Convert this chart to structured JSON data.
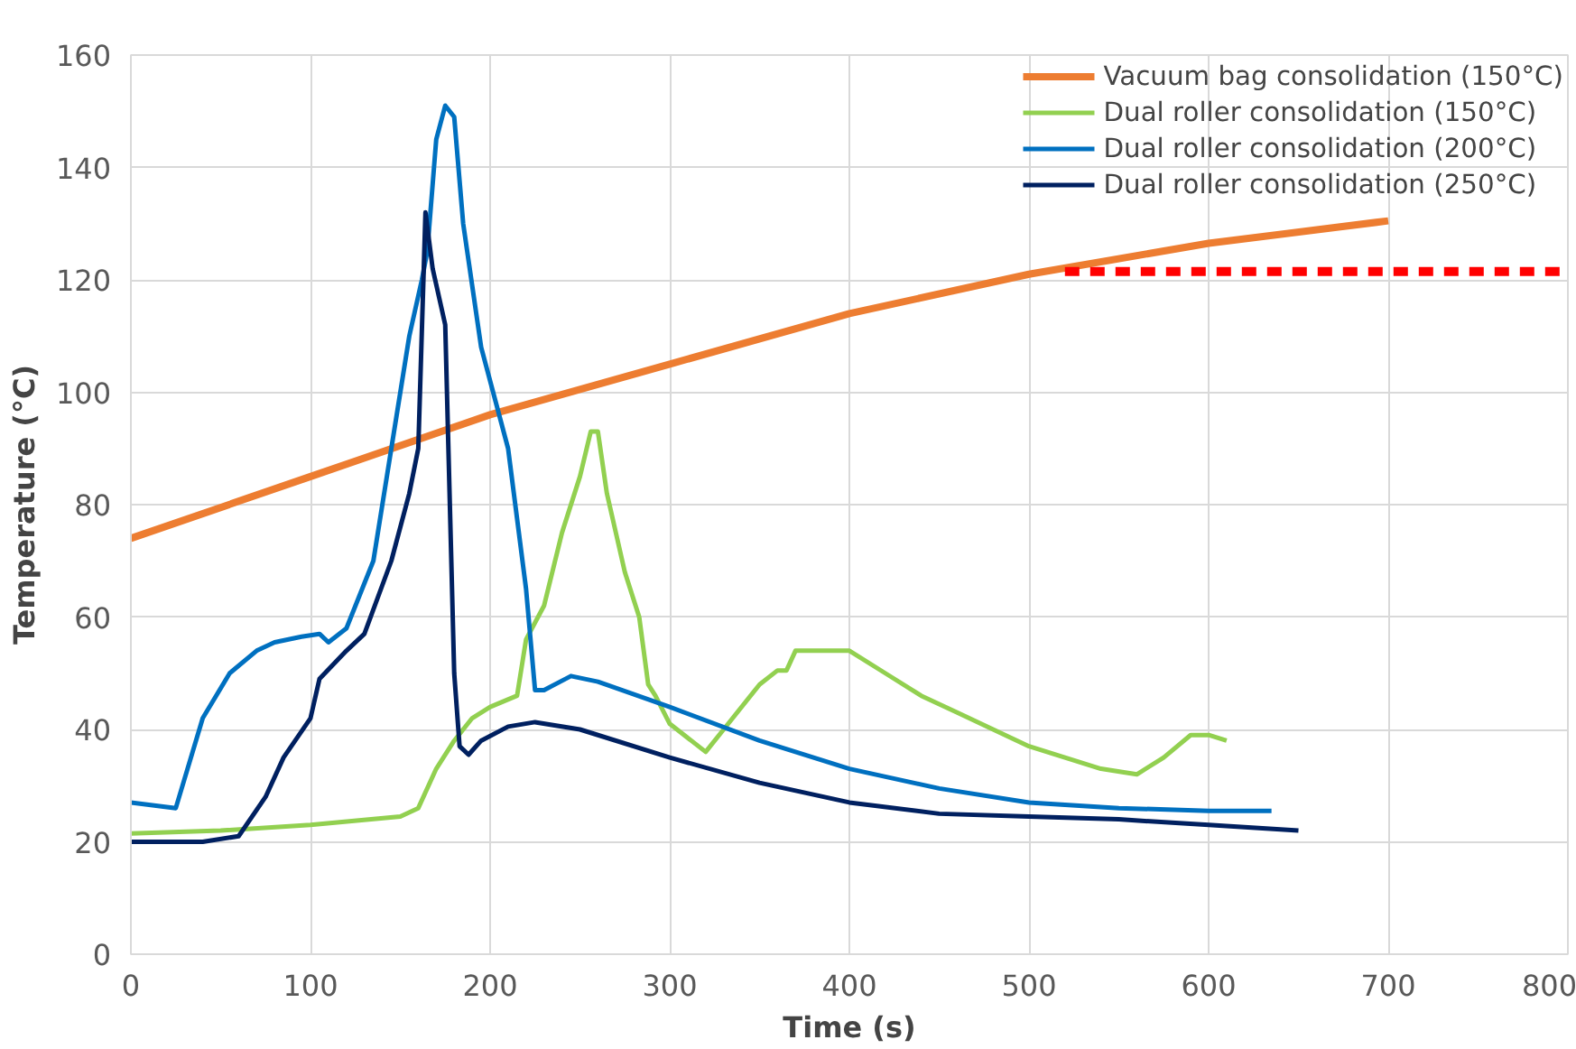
{
  "chart_data": {
    "type": "line",
    "xlabel": "Time (s)",
    "ylabel": "Temperature (°C)",
    "xlim": [
      0,
      800
    ],
    "ylim": [
      0,
      160
    ],
    "xticks": [
      0,
      100,
      200,
      300,
      400,
      500,
      600,
      700,
      800
    ],
    "yticks": [
      0,
      20,
      40,
      60,
      80,
      100,
      120,
      140,
      160
    ],
    "grid": true,
    "legend": "top right",
    "line_style": "solid",
    "series": [
      {
        "name": "Vacuum bag consolidation (150°C)",
        "color": "#ed7d31",
        "x": [
          0,
          100,
          200,
          300,
          400,
          500,
          600,
          700
        ],
        "values": [
          74,
          85,
          96,
          105,
          114,
          121,
          126.5,
          130.5
        ]
      },
      {
        "name": "Dual roller consolidation (150°C)",
        "color": "#92d050",
        "x": [
          0,
          50,
          100,
          150,
          160,
          170,
          180,
          190,
          200,
          215,
          220,
          230,
          240,
          250,
          256,
          260,
          265,
          275,
          283,
          288,
          292,
          300,
          320,
          330,
          350,
          360,
          365,
          370,
          400,
          420,
          440,
          460,
          480,
          500,
          520,
          540,
          560,
          575,
          590,
          600,
          610
        ],
        "values": [
          21.5,
          22,
          23,
          24.5,
          26,
          33,
          38,
          42,
          44,
          46,
          56,
          62,
          75,
          85,
          93,
          93,
          82,
          68,
          60,
          48,
          46,
          41,
          36,
          40,
          48,
          50.5,
          50.5,
          54,
          54,
          50,
          46,
          43,
          40,
          37,
          35,
          33,
          32,
          35,
          39,
          39,
          38
        ]
      },
      {
        "name": "Dual roller consolidation (200°C)",
        "color": "#0070c0",
        "x": [
          0,
          25,
          40,
          55,
          70,
          80,
          95,
          105,
          110,
          120,
          135,
          145,
          155,
          162,
          165,
          170,
          175,
          180,
          185,
          195,
          210,
          220,
          225,
          230,
          245,
          260,
          300,
          350,
          400,
          450,
          500,
          550,
          600,
          635
        ],
        "values": [
          27,
          26,
          42,
          50,
          54,
          55.5,
          56.5,
          57,
          55.5,
          58,
          70,
          90,
          110,
          120,
          125,
          145,
          151,
          149,
          130,
          108,
          90,
          65,
          47,
          47,
          49.5,
          48.5,
          44,
          38,
          33,
          29.5,
          27,
          26,
          25.5,
          25.5
        ]
      },
      {
        "name": "Dual roller consolidation (250°C)",
        "color": "#002060",
        "x": [
          0,
          40,
          60,
          75,
          85,
          100,
          105,
          120,
          130,
          145,
          155,
          160,
          164,
          168,
          175,
          180,
          183,
          188,
          195,
          210,
          225,
          250,
          300,
          350,
          400,
          450,
          500,
          550,
          600,
          650
        ],
        "values": [
          20,
          20,
          21,
          28,
          35,
          42,
          49,
          54,
          57,
          70,
          82,
          90,
          132,
          122,
          112,
          50,
          37,
          35.5,
          38,
          40.5,
          41.3,
          40,
          35,
          30.5,
          27,
          25,
          24.5,
          24,
          23,
          22
        ]
      },
      {
        "color": "#ff0000",
        "line_style": "dashed",
        "x": [
          520,
          800
        ],
        "values": [
          121.5,
          121.5
        ]
      }
    ]
  }
}
